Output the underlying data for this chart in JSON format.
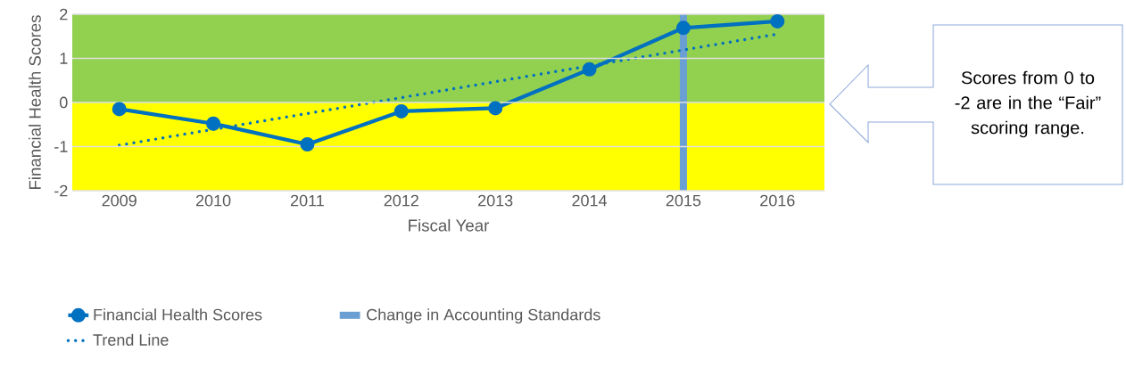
{
  "chart_data": {
    "type": "line",
    "xlabel": "Fiscal Year",
    "ylabel": "Financial Health Scores",
    "categories": [
      "2009",
      "2010",
      "2011",
      "2012",
      "2013",
      "2014",
      "2015",
      "2016"
    ],
    "series": [
      {
        "name": "Financial Health Scores",
        "color": "#0070c0",
        "values": [
          -0.15,
          -0.48,
          -0.95,
          -0.2,
          -0.13,
          0.75,
          1.69,
          1.84
        ],
        "marker": "circle",
        "line_style": "solid"
      },
      {
        "name": "Trend Line",
        "type": "line",
        "color": "#0070c0",
        "values": [
          -0.97,
          -0.61,
          -0.25,
          0.11,
          0.47,
          0.83,
          1.19,
          1.55
        ],
        "marker": "none",
        "line_style": "dotted"
      }
    ],
    "ylim": [
      -2,
      2
    ],
    "yticks": [
      -2,
      -1,
      0,
      1,
      2
    ],
    "grid": "y",
    "legend": "bottom",
    "ref_lines": [
      {
        "axis": "x",
        "value": "2015",
        "label": "Change in Accounting Standards",
        "color": "#6a9fd3"
      }
    ],
    "bands": [
      {
        "axis": "y",
        "from": 0,
        "to": 2,
        "color": "#92d050"
      },
      {
        "axis": "y",
        "from": -2,
        "to": 0,
        "color": "#ffff00"
      }
    ],
    "annotations": [
      "Scores from 0 to -2 are in the “Fair” scoring range."
    ]
  }
}
